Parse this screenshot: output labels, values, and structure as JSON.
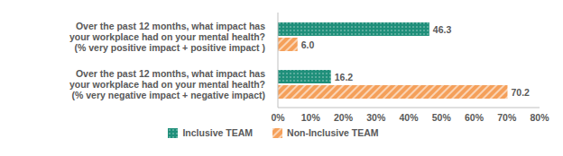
{
  "chart_data": {
    "type": "bar",
    "orientation": "horizontal",
    "categories": [
      "Over the past 12 months, what impact has\nyour workplace had on your mental health?\n(% very positive impact + positive impact )",
      "Over the past 12 months, what impact has\nyour workplace had on your mental health?\n(% very negative impact + negative impact)"
    ],
    "series": [
      {
        "name": "Inclusive TEAM",
        "color": "#1f8f7a",
        "values": [
          46.3,
          16.2
        ],
        "value_labels": [
          "46.3",
          "16.2"
        ]
      },
      {
        "name": "Non-Inclusive TEAM",
        "color": "#f5a05a",
        "values": [
          6.0,
          70.2
        ],
        "value_labels": [
          "6.0",
          "70.2"
        ]
      }
    ],
    "xlim": [
      0,
      80
    ],
    "xticks": [
      {
        "value": 0,
        "label": "0%"
      },
      {
        "value": 10,
        "label": "10%"
      },
      {
        "value": 20,
        "label": "20%"
      },
      {
        "value": 30,
        "label": "30%"
      },
      {
        "value": 40,
        "label": "40%"
      },
      {
        "value": 50,
        "label": "50%"
      },
      {
        "value": 60,
        "label": "60%"
      },
      {
        "value": 70,
        "label": "70%"
      },
      {
        "value": 80,
        "label": "80%"
      }
    ],
    "grid": false,
    "legend": "bottom",
    "data_labels": true
  }
}
